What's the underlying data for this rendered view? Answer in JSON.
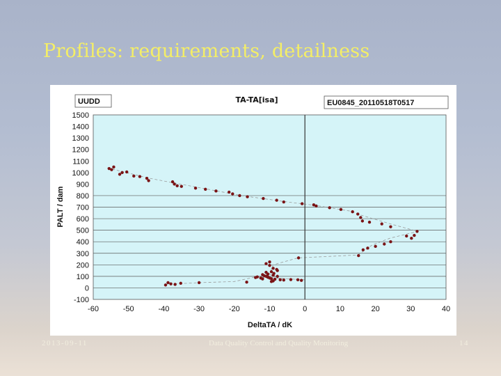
{
  "slide": {
    "title": "Profiles: requirements, detailness",
    "footer_date": "2013-09-11",
    "footer_center": "Data Quality Control and Quality Monitoring",
    "page_number": "14"
  },
  "chart_data": {
    "type": "scatter",
    "title": "TA-TA[isa]",
    "label_left": "UUDD",
    "label_right": "EU0845_20110518T0517",
    "xlabel": "DeltaTA / dK",
    "ylabel": "PALT / dam",
    "xlim": [
      -60,
      40
    ],
    "ylim": [
      -100,
      1500
    ],
    "xticks": [
      -60,
      -50,
      -40,
      -30,
      -20,
      -10,
      0,
      10,
      20,
      30,
      40
    ],
    "yticks": [
      -100,
      0,
      100,
      200,
      300,
      400,
      500,
      600,
      700,
      800,
      900,
      1000,
      1100,
      1200,
      1300,
      1400,
      1500
    ],
    "grid_y": [
      0,
      100,
      200,
      300,
      400,
      500,
      600,
      700,
      800
    ],
    "vertical_line_x": 0,
    "colors": {
      "plot_bg": "#d5f4f8",
      "points": "#7a1416",
      "trend": "#9a9a9a",
      "zero_line": "#333333"
    },
    "series": [
      {
        "points": [
          [
            -55.5,
            1035
          ],
          [
            -54.8,
            1025
          ],
          [
            -54.2,
            1048
          ],
          [
            -52.5,
            985
          ],
          [
            -51.8,
            1000
          ],
          [
            -50.5,
            1005
          ],
          [
            -48.5,
            970
          ],
          [
            -46.8,
            965
          ],
          [
            -44.8,
            950
          ],
          [
            -44.3,
            930
          ],
          [
            -37.5,
            920
          ],
          [
            -37.0,
            900
          ],
          [
            -36.2,
            885
          ],
          [
            -35.0,
            880
          ],
          [
            -31.0,
            865
          ],
          [
            -28.2,
            855
          ],
          [
            -25.2,
            840
          ],
          [
            -21.5,
            830
          ],
          [
            -20.5,
            815
          ],
          [
            -18.5,
            800
          ],
          [
            -16.3,
            790
          ],
          [
            -11.8,
            775
          ],
          [
            -8.0,
            760
          ],
          [
            -6.0,
            745
          ],
          [
            -0.8,
            730
          ],
          [
            2.5,
            720
          ],
          [
            3.2,
            710
          ],
          [
            7.0,
            695
          ],
          [
            10.2,
            680
          ],
          [
            13.5,
            660
          ],
          [
            15.0,
            640
          ],
          [
            15.8,
            610
          ],
          [
            16.3,
            580
          ],
          [
            18.3,
            570
          ],
          [
            21.8,
            555
          ],
          [
            24.3,
            530
          ],
          [
            31.8,
            490
          ],
          [
            31.0,
            455
          ],
          [
            30.2,
            430
          ],
          [
            28.8,
            450
          ],
          [
            24.3,
            400
          ],
          [
            22.5,
            380
          ],
          [
            20.0,
            360
          ],
          [
            17.8,
            345
          ],
          [
            16.5,
            330
          ],
          [
            15.2,
            280
          ],
          [
            -1.8,
            260
          ],
          [
            -10.0,
            225
          ],
          [
            -11.0,
            210
          ],
          [
            -10.0,
            195
          ],
          [
            -9.0,
            170
          ],
          [
            -8.0,
            160
          ],
          [
            -7.8,
            150
          ],
          [
            -9.5,
            140
          ],
          [
            -11.0,
            135
          ],
          [
            -10.5,
            120
          ],
          [
            -12.0,
            115
          ],
          [
            -9.0,
            110
          ],
          [
            -7.8,
            100
          ],
          [
            -13.5,
            95
          ],
          [
            -14.0,
            90
          ],
          [
            -12.5,
            85
          ],
          [
            -11.0,
            100
          ],
          [
            -10.5,
            92
          ],
          [
            -9.5,
            80
          ],
          [
            -8.5,
            75
          ],
          [
            -7.0,
            70
          ],
          [
            -9.0,
            60
          ],
          [
            -6.0,
            68
          ],
          [
            -4.0,
            72
          ],
          [
            -2.0,
            70
          ],
          [
            -1.0,
            65
          ],
          [
            -12.0,
            78
          ],
          [
            -10.0,
            85
          ],
          [
            -10.5,
            95
          ],
          [
            -11.5,
            105
          ],
          [
            -8.8,
            125
          ],
          [
            -16.5,
            50
          ],
          [
            -9.5,
            55
          ],
          [
            -30.0,
            45
          ],
          [
            -35.2,
            40
          ],
          [
            -36.8,
            30
          ],
          [
            -38.0,
            35
          ],
          [
            -38.8,
            45
          ],
          [
            -39.5,
            25
          ]
        ]
      }
    ],
    "trend": [
      [
        -56,
        1040
      ],
      [
        -44,
        950
      ],
      [
        -38,
        915
      ],
      [
        -28,
        858
      ],
      [
        -18,
        800
      ],
      [
        -5,
        745
      ],
      [
        3,
        715
      ],
      [
        13,
        665
      ],
      [
        16,
        630
      ],
      [
        25,
        548
      ],
      [
        32,
        490
      ],
      [
        24,
        430
      ],
      [
        19,
        370
      ],
      [
        15,
        285
      ],
      [
        -2,
        260
      ],
      [
        -9,
        200
      ],
      [
        -10,
        120
      ],
      [
        -8,
        85
      ],
      [
        -3,
        75
      ],
      [
        0,
        70
      ],
      [
        -14,
        95
      ],
      [
        -20,
        55
      ],
      [
        -30,
        45
      ],
      [
        -40,
        30
      ]
    ]
  }
}
